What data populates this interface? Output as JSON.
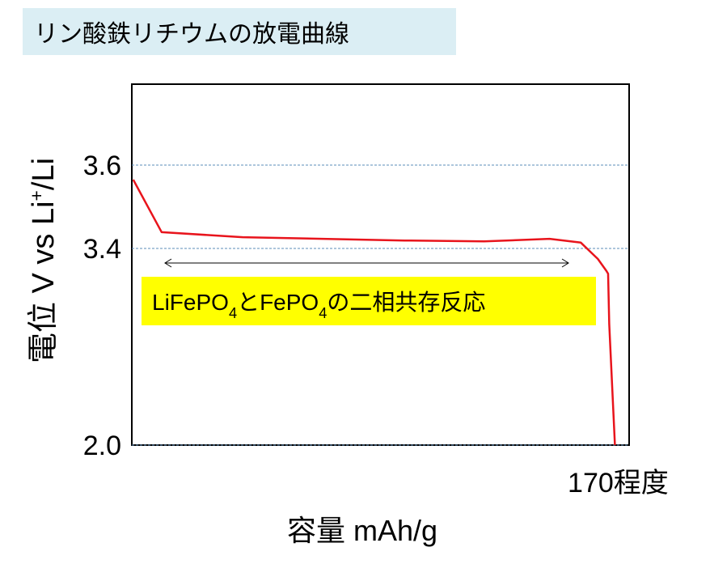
{
  "chart_data": {
    "type": "line",
    "title": "リン酸鉄リチウムの放電曲線",
    "x_label": "容量 mAh/g",
    "y_label": [
      {
        "text": "電位 V vs Li"
      },
      {
        "text": "+",
        "sup": true
      },
      {
        "text": "/Li"
      }
    ],
    "annotation": [
      {
        "text": "LiFePO"
      },
      {
        "text": "4",
        "sub": true
      },
      {
        "text": "とFePO"
      },
      {
        "text": "4",
        "sub": true
      },
      {
        "text": "の二相共存反応"
      }
    ],
    "x": [
      0.5,
      10.5,
      39,
      96,
      124,
      147,
      158,
      164,
      167,
      167.6,
      168,
      170
    ],
    "series": [
      {
        "color": "#e8141c",
        "values": [
          3.565,
          3.439,
          3.427,
          3.419,
          3.417,
          3.423,
          3.414,
          3.325,
          3.24,
          3.22,
          2.86,
          2.0
        ]
      }
    ],
    "xlim": [
      0,
      175
    ],
    "xticks": [
      {
        "value": 170,
        "label": "170程度"
      }
    ],
    "ylim": [
      2.0,
      3.8
    ],
    "yticks": [
      {
        "value": 2,
        "label": "2.0"
      },
      3.4,
      3.6
    ],
    "grid": true,
    "grid_color": "#5b8db8"
  }
}
